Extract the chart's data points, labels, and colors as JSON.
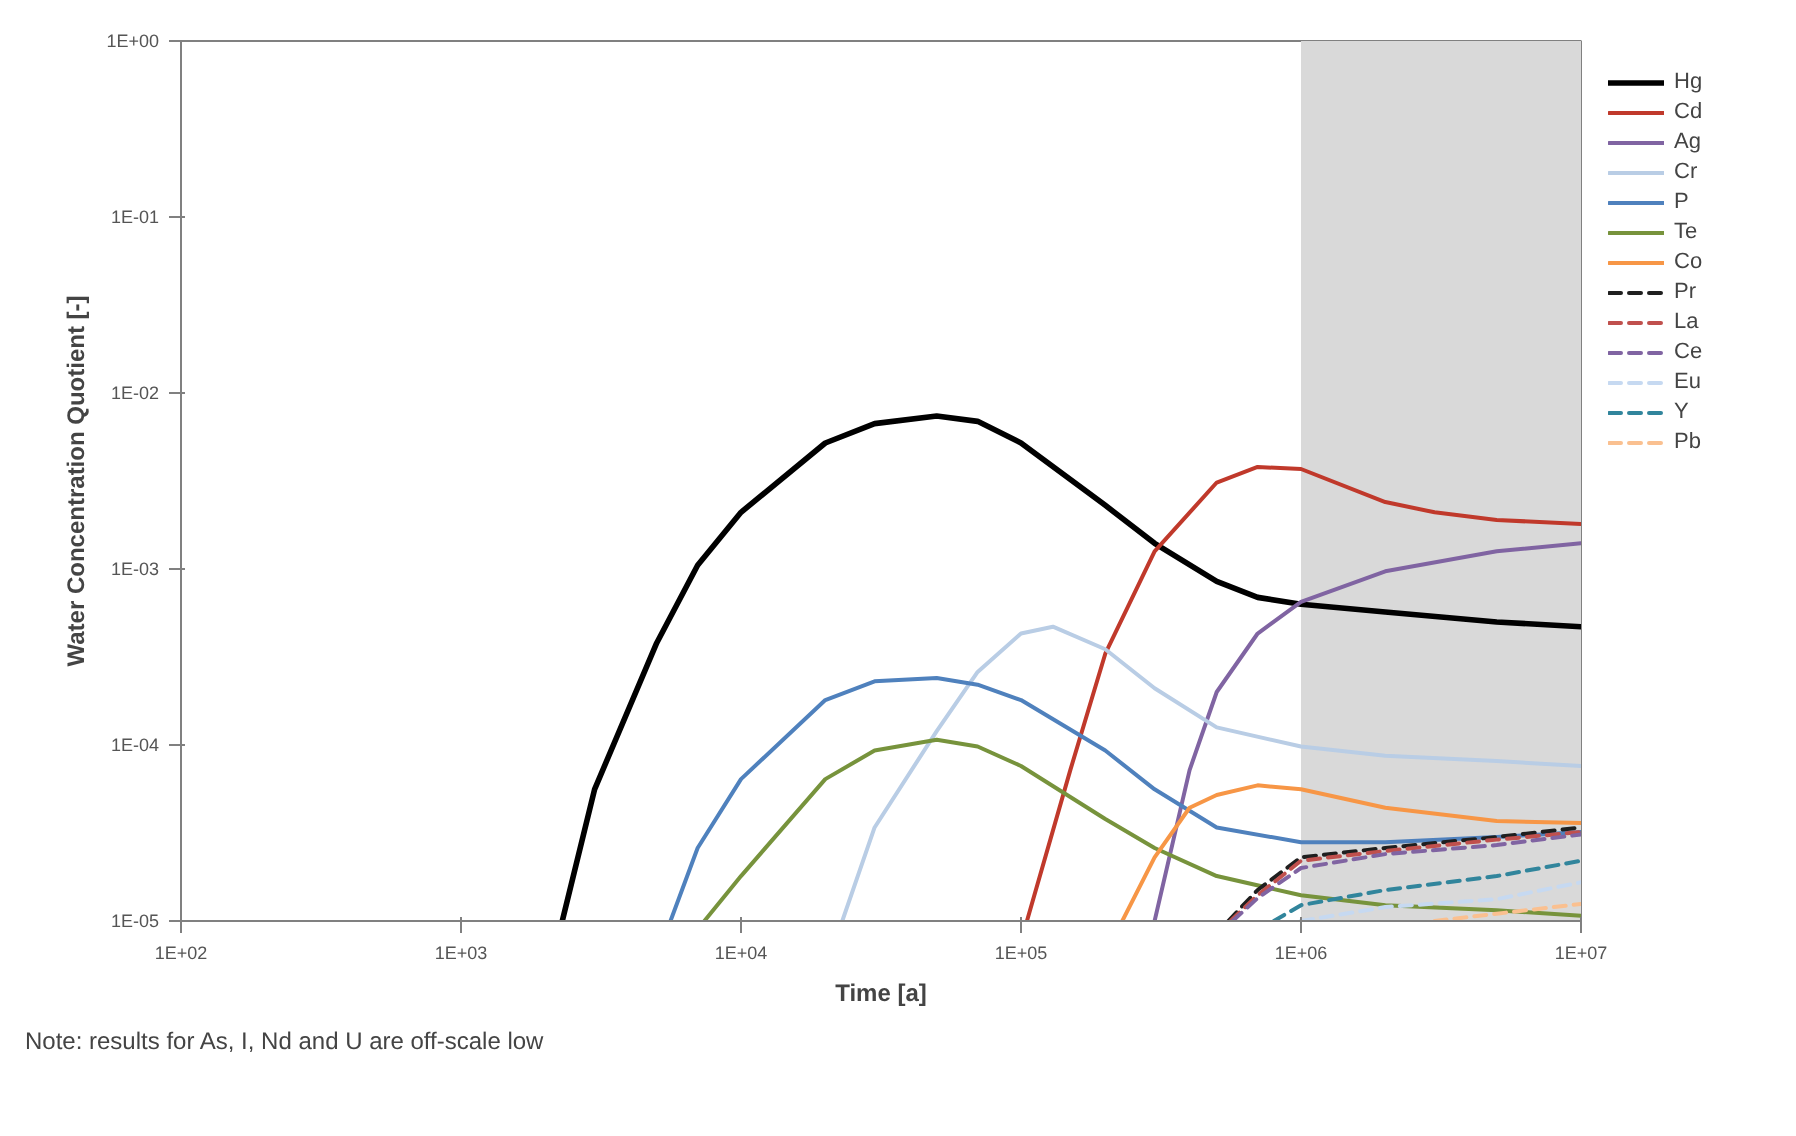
{
  "chart_data": {
    "type": "line",
    "xlabel": "Time [a]",
    "ylabel": "Water Concentration Quotient [-]",
    "log": "xy",
    "grid": false,
    "legend": "right",
    "line_style": "solid",
    "xlim": [
      100,
      10000000
    ],
    "ylim": [
      1e-05,
      1
    ],
    "xticks": [
      {
        "value": 100,
        "label": "1E+02"
      },
      {
        "value": 1000,
        "label": "1E+03"
      },
      {
        "value": 10000,
        "label": "1E+04"
      },
      {
        "value": 100000,
        "label": "1E+05"
      },
      {
        "value": 1000000,
        "label": "1E+06"
      },
      {
        "value": 10000000,
        "label": "1E+07"
      }
    ],
    "yticks": [
      {
        "value": 1e-05,
        "label": "1E-05"
      },
      {
        "value": 0.0001,
        "label": "1E-04"
      },
      {
        "value": 0.001,
        "label": "1E-03"
      },
      {
        "value": 0.01,
        "label": "1E-02"
      },
      {
        "value": 0.1,
        "label": "1E-01"
      },
      {
        "value": 1,
        "label": "1E+00"
      }
    ],
    "bands": [
      {
        "axis": "x",
        "from": 1000000,
        "to": 10000000,
        "color": "#d9d9d9"
      }
    ],
    "annotations": [
      "Note: results for As, I, Nd and U are off-scale low"
    ],
    "series": [
      {
        "name": "Hg",
        "color": "#000000",
        "x": [
          2300,
          3000,
          5000,
          7000,
          10000,
          20000,
          30000,
          50000,
          70000,
          100000,
          200000,
          300000,
          500000,
          700000,
          1000000,
          2000000,
          5000000,
          10000000
        ],
        "values": [
          1e-05,
          5.6e-05,
          0.00038,
          0.00105,
          0.0021,
          0.0052,
          0.0067,
          0.0074,
          0.0069,
          0.0052,
          0.0023,
          0.0014,
          0.00085,
          0.00069,
          0.00063,
          0.00057,
          0.0005,
          0.00047
        ]
      },
      {
        "name": "Cd",
        "color": "#c0392b",
        "x": [
          105000,
          150000,
          200000,
          300000,
          500000,
          700000,
          1000000,
          2000000,
          3000000,
          5000000,
          10000000
        ],
        "values": [
          1e-05,
          7.2e-05,
          0.00033,
          0.00126,
          0.0031,
          0.0038,
          0.0037,
          0.0024,
          0.0021,
          0.0019,
          0.0018
        ]
      },
      {
        "name": "Ag",
        "color": "#8064a2",
        "x": [
          300000,
          400000,
          500000,
          700000,
          1000000,
          2000000,
          5000000,
          10000000
        ],
        "values": [
          1e-05,
          7.2e-05,
          0.0002,
          0.00043,
          0.00065,
          0.00097,
          0.00126,
          0.0014
        ]
      },
      {
        "name": "Cr",
        "color": "#b9cde5",
        "x": [
          23000,
          30000,
          50000,
          70000,
          100000,
          130000,
          200000,
          300000,
          500000,
          1000000,
          2000000,
          5000000,
          10000000
        ],
        "values": [
          1e-05,
          3.4e-05,
          0.00012,
          0.00026,
          0.00043,
          0.00047,
          0.00035,
          0.00021,
          0.000126,
          9.8e-05,
          8.7e-05,
          8.1e-05,
          7.6e-05
        ]
      },
      {
        "name": "P",
        "color": "#4f81bd",
        "x": [
          5600,
          7000,
          10000,
          20000,
          30000,
          50000,
          70000,
          100000,
          200000,
          300000,
          500000,
          1000000,
          2000000,
          5000000,
          10000000
        ],
        "values": [
          1e-05,
          2.6e-05,
          6.4e-05,
          0.00018,
          0.00023,
          0.00024,
          0.00022,
          0.00018,
          9.3e-05,
          5.6e-05,
          3.4e-05,
          2.8e-05,
          2.8e-05,
          3e-05,
          3.2e-05
        ]
      },
      {
        "name": "Te",
        "color": "#77933c",
        "x": [
          7400,
          10000,
          20000,
          30000,
          50000,
          70000,
          100000,
          200000,
          300000,
          500000,
          1000000,
          2000000,
          5000000,
          10000000
        ],
        "values": [
          1e-05,
          1.8e-05,
          6.4e-05,
          9.3e-05,
          0.000107,
          9.8e-05,
          7.6e-05,
          3.8e-05,
          2.6e-05,
          1.8e-05,
          1.4e-05,
          1.23e-05,
          1.15e-05,
          1.07e-05
        ]
      },
      {
        "name": "Co",
        "color": "#f79646",
        "x": [
          230000,
          300000,
          400000,
          500000,
          700000,
          1000000,
          2000000,
          5000000,
          10000000
        ],
        "values": [
          1e-05,
          2.3e-05,
          4.4e-05,
          5.2e-05,
          5.9e-05,
          5.6e-05,
          4.4e-05,
          3.7e-05,
          3.6e-05
        ]
      },
      {
        "name": "Pr",
        "color": "#1f1f1f",
        "line_style": "dashed",
        "x": [
          550000,
          700000,
          1000000,
          2000000,
          5000000,
          10000000
        ],
        "values": [
          1e-05,
          1.5e-05,
          2.3e-05,
          2.6e-05,
          3e-05,
          3.4e-05
        ]
      },
      {
        "name": "La",
        "color": "#c0504d",
        "line_style": "dashed",
        "x": [
          560000,
          700000,
          1000000,
          2000000,
          5000000,
          10000000
        ],
        "values": [
          1e-05,
          1.4e-05,
          2.2e-05,
          2.5e-05,
          2.9e-05,
          3.2e-05
        ]
      },
      {
        "name": "Ce",
        "color": "#8064a2",
        "line_style": "dashed",
        "x": [
          570000,
          700000,
          1000000,
          2000000,
          5000000,
          10000000
        ],
        "values": [
          1e-05,
          1.35e-05,
          2e-05,
          2.4e-05,
          2.7e-05,
          3.1e-05
        ]
      },
      {
        "name": "Eu",
        "color": "#c6d9f1",
        "line_style": "dashed",
        "x": [
          1000000,
          2000000,
          5000000,
          10000000
        ],
        "values": [
          1e-05,
          1.2e-05,
          1.33e-05,
          1.66e-05
        ]
      },
      {
        "name": "Y",
        "color": "#31859c",
        "line_style": "dashed",
        "x": [
          800000,
          1000000,
          2000000,
          5000000,
          10000000
        ],
        "values": [
          1e-05,
          1.23e-05,
          1.5e-05,
          1.8e-05,
          2.2e-05
        ]
      },
      {
        "name": "Pb",
        "color": "#fac090",
        "line_style": "dashed",
        "x": [
          3000000,
          5000000,
          10000000
        ],
        "values": [
          1e-05,
          1.1e-05,
          1.25e-05
        ]
      }
    ]
  }
}
